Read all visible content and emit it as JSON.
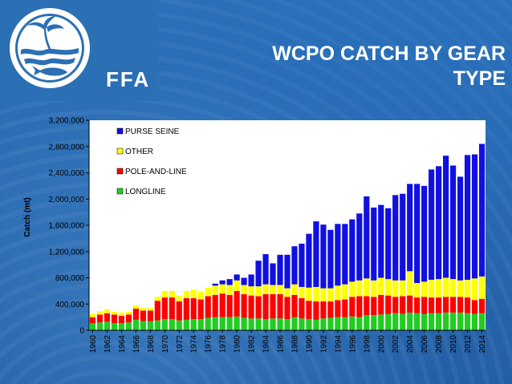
{
  "header": {
    "org": "FFA",
    "title_line1": "WCPO CATCH BY GEAR",
    "title_line2": "TYPE"
  },
  "colors": {
    "purse_seine": "#1010e0",
    "other": "#ffff00",
    "pole_and_line": "#ff0000",
    "longline": "#22cc22"
  },
  "chart_data": {
    "type": "bar",
    "stacked": true,
    "title": "",
    "xlabel": "",
    "ylabel": "Catch (mt)",
    "ylim": [
      0,
      3200000
    ],
    "yticks": [
      0,
      400000,
      800000,
      1200000,
      1600000,
      2000000,
      2400000,
      2800000,
      3200000
    ],
    "ytick_labels": [
      "0",
      "400,000",
      "800,000",
      "1,200,000",
      "1,600,000",
      "2,000,000",
      "2,400,000",
      "2,800,000",
      "3,200,000"
    ],
    "legend_position": "top-left",
    "x": [
      1960,
      1961,
      1962,
      1963,
      1964,
      1965,
      1966,
      1967,
      1968,
      1969,
      1970,
      1971,
      1972,
      1973,
      1974,
      1975,
      1976,
      1977,
      1978,
      1979,
      1980,
      1981,
      1982,
      1983,
      1984,
      1985,
      1986,
      1987,
      1988,
      1989,
      1990,
      1991,
      1992,
      1993,
      1994,
      1995,
      1996,
      1997,
      1998,
      1999,
      2000,
      2001,
      2002,
      2003,
      2004,
      2005,
      2006,
      2007,
      2008,
      2009,
      2010,
      2011,
      2012,
      2013,
      2014
    ],
    "xtick_labels": [
      "1960",
      "1962",
      "1964",
      "1966",
      "1968",
      "1970",
      "1972",
      "1974",
      "1976",
      "1978",
      "1980",
      "1982",
      "1984",
      "1986",
      "1988",
      "1990",
      "1992",
      "1994",
      "1996",
      "1998",
      "2000",
      "2002",
      "2004",
      "2006",
      "2008",
      "2010",
      "2012",
      "2014"
    ],
    "series": [
      {
        "name": "LONGLINE",
        "values": [
          110000,
          120000,
          130000,
          110000,
          110000,
          120000,
          160000,
          140000,
          140000,
          150000,
          170000,
          170000,
          150000,
          160000,
          170000,
          170000,
          190000,
          200000,
          200000,
          200000,
          210000,
          190000,
          180000,
          180000,
          170000,
          180000,
          180000,
          170000,
          200000,
          180000,
          170000,
          160000,
          180000,
          190000,
          200000,
          200000,
          210000,
          200000,
          230000,
          230000,
          240000,
          250000,
          260000,
          250000,
          270000,
          260000,
          250000,
          260000,
          260000,
          270000,
          270000,
          270000,
          260000,
          250000,
          260000
        ]
      },
      {
        "name": "POLE-AND-LINE",
        "values": [
          90000,
          120000,
          130000,
          130000,
          110000,
          120000,
          170000,
          160000,
          160000,
          300000,
          330000,
          330000,
          290000,
          330000,
          320000,
          300000,
          330000,
          340000,
          360000,
          340000,
          390000,
          360000,
          350000,
          340000,
          380000,
          370000,
          370000,
          340000,
          340000,
          310000,
          280000,
          280000,
          260000,
          250000,
          260000,
          270000,
          300000,
          320000,
          290000,
          280000,
          300000,
          280000,
          250000,
          270000,
          260000,
          240000,
          260000,
          240000,
          240000,
          240000,
          240000,
          240000,
          240000,
          210000,
          220000
        ]
      },
      {
        "name": "OTHER",
        "values": [
          50000,
          50000,
          60000,
          40000,
          50000,
          40000,
          50000,
          40000,
          40000,
          60000,
          100000,
          100000,
          90000,
          110000,
          130000,
          120000,
          130000,
          140000,
          140000,
          150000,
          160000,
          140000,
          140000,
          150000,
          150000,
          140000,
          140000,
          130000,
          160000,
          170000,
          200000,
          220000,
          200000,
          200000,
          220000,
          230000,
          230000,
          240000,
          270000,
          250000,
          260000,
          250000,
          250000,
          240000,
          370000,
          220000,
          230000,
          270000,
          280000,
          290000,
          270000,
          250000,
          270000,
          330000,
          340000
        ]
      },
      {
        "name": "PURSE SEINE",
        "values": [
          0,
          0,
          0,
          0,
          0,
          0,
          0,
          0,
          0,
          0,
          0,
          0,
          0,
          0,
          0,
          0,
          0,
          30000,
          60000,
          90000,
          90000,
          110000,
          180000,
          390000,
          460000,
          330000,
          460000,
          510000,
          580000,
          660000,
          820000,
          1000000,
          970000,
          890000,
          940000,
          920000,
          950000,
          1020000,
          1250000,
          1110000,
          1110000,
          1080000,
          1300000,
          1320000,
          1330000,
          1510000,
          1460000,
          1680000,
          1720000,
          1860000,
          1730000,
          1580000,
          1900000,
          1890000,
          2020000
        ]
      }
    ]
  }
}
